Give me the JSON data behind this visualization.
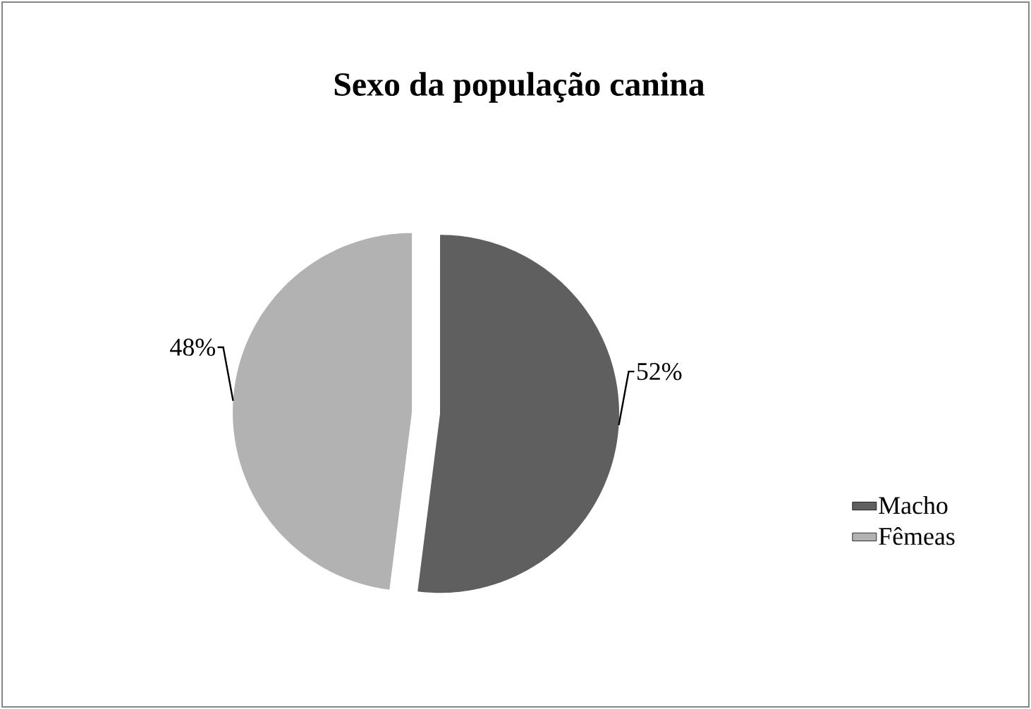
{
  "chart_data": {
    "type": "pie",
    "title": "Sexo da população canina",
    "categories": [
      "Macho",
      "Fêmeas"
    ],
    "values": [
      52,
      48
    ],
    "colors": [
      "#5f5f5f",
      "#b2b2b2"
    ],
    "value_labels": [
      "52%",
      "48%"
    ],
    "legend": "right"
  }
}
